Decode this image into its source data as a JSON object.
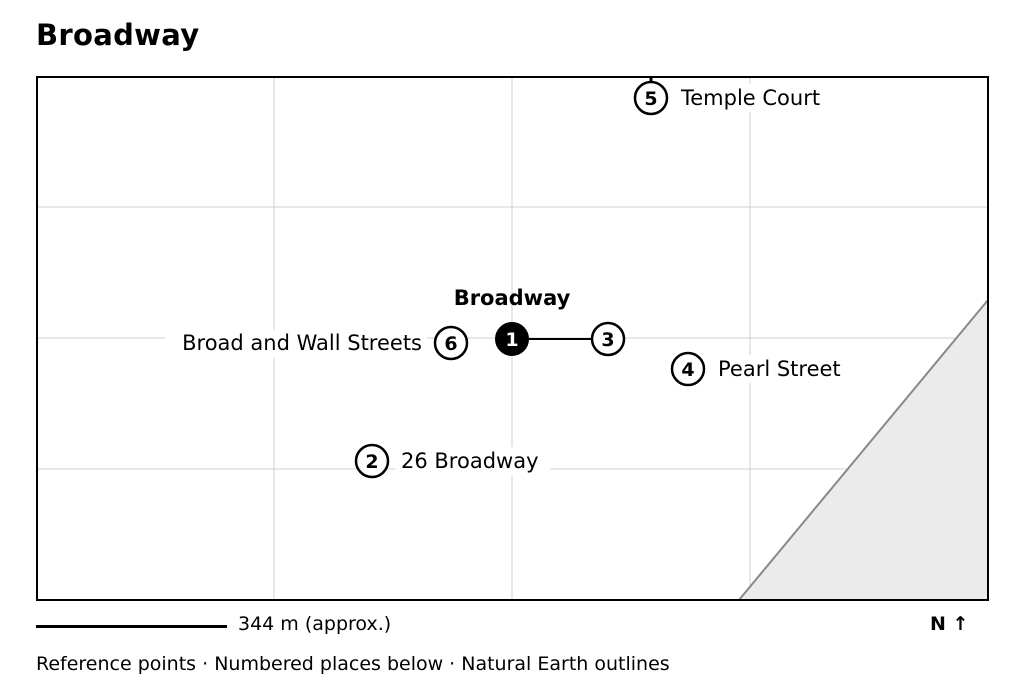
{
  "title": "Broadway",
  "map": {
    "center_label": "Broadway",
    "places": [
      {
        "number": "1",
        "name": "",
        "primary": true
      },
      {
        "number": "2",
        "name": "26 Broadway",
        "primary": false
      },
      {
        "number": "3",
        "name": "",
        "primary": false
      },
      {
        "number": "4",
        "name": "Pearl Street",
        "primary": false
      },
      {
        "number": "5",
        "name": "Temple Court",
        "primary": false
      },
      {
        "number": "6",
        "name": "Broad and Wall Streets",
        "primary": false
      }
    ],
    "colors": {
      "frame": "#000000",
      "grid": "#d0d0d0",
      "land": "#ebebeb",
      "coast": "#888888",
      "primary_marker": "#000000",
      "marker": "#ffffff"
    }
  },
  "scale": {
    "label": "344 m (approx.)"
  },
  "north": {
    "label": "N ↑"
  },
  "caption": "Reference points · Numbered places below · Natural Earth outlines"
}
